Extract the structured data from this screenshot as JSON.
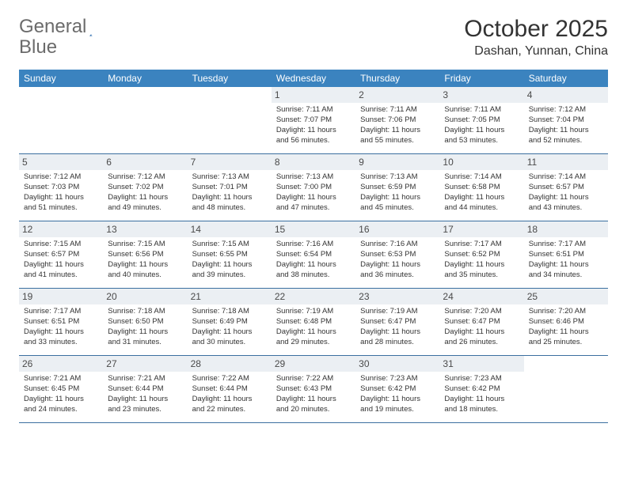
{
  "logo": {
    "text1": "General",
    "text2": "Blue"
  },
  "title": "October 2025",
  "location": "Dashan, Yunnan, China",
  "colors": {
    "header_bg": "#3b83bf",
    "header_text": "#ffffff",
    "daynum_bg": "#ebeff3",
    "rule": "#3b6fa0",
    "logo_accent": "#2f6fb0"
  },
  "weekdays": [
    "Sunday",
    "Monday",
    "Tuesday",
    "Wednesday",
    "Thursday",
    "Friday",
    "Saturday"
  ],
  "weeks": [
    [
      {
        "n": "",
        "sr": "",
        "ss": "",
        "dl": ""
      },
      {
        "n": "",
        "sr": "",
        "ss": "",
        "dl": ""
      },
      {
        "n": "",
        "sr": "",
        "ss": "",
        "dl": ""
      },
      {
        "n": "1",
        "sr": "7:11 AM",
        "ss": "7:07 PM",
        "dl": "11 hours and 56 minutes."
      },
      {
        "n": "2",
        "sr": "7:11 AM",
        "ss": "7:06 PM",
        "dl": "11 hours and 55 minutes."
      },
      {
        "n": "3",
        "sr": "7:11 AM",
        "ss": "7:05 PM",
        "dl": "11 hours and 53 minutes."
      },
      {
        "n": "4",
        "sr": "7:12 AM",
        "ss": "7:04 PM",
        "dl": "11 hours and 52 minutes."
      }
    ],
    [
      {
        "n": "5",
        "sr": "7:12 AM",
        "ss": "7:03 PM",
        "dl": "11 hours and 51 minutes."
      },
      {
        "n": "6",
        "sr": "7:12 AM",
        "ss": "7:02 PM",
        "dl": "11 hours and 49 minutes."
      },
      {
        "n": "7",
        "sr": "7:13 AM",
        "ss": "7:01 PM",
        "dl": "11 hours and 48 minutes."
      },
      {
        "n": "8",
        "sr": "7:13 AM",
        "ss": "7:00 PM",
        "dl": "11 hours and 47 minutes."
      },
      {
        "n": "9",
        "sr": "7:13 AM",
        "ss": "6:59 PM",
        "dl": "11 hours and 45 minutes."
      },
      {
        "n": "10",
        "sr": "7:14 AM",
        "ss": "6:58 PM",
        "dl": "11 hours and 44 minutes."
      },
      {
        "n": "11",
        "sr": "7:14 AM",
        "ss": "6:57 PM",
        "dl": "11 hours and 43 minutes."
      }
    ],
    [
      {
        "n": "12",
        "sr": "7:15 AM",
        "ss": "6:57 PM",
        "dl": "11 hours and 41 minutes."
      },
      {
        "n": "13",
        "sr": "7:15 AM",
        "ss": "6:56 PM",
        "dl": "11 hours and 40 minutes."
      },
      {
        "n": "14",
        "sr": "7:15 AM",
        "ss": "6:55 PM",
        "dl": "11 hours and 39 minutes."
      },
      {
        "n": "15",
        "sr": "7:16 AM",
        "ss": "6:54 PM",
        "dl": "11 hours and 38 minutes."
      },
      {
        "n": "16",
        "sr": "7:16 AM",
        "ss": "6:53 PM",
        "dl": "11 hours and 36 minutes."
      },
      {
        "n": "17",
        "sr": "7:17 AM",
        "ss": "6:52 PM",
        "dl": "11 hours and 35 minutes."
      },
      {
        "n": "18",
        "sr": "7:17 AM",
        "ss": "6:51 PM",
        "dl": "11 hours and 34 minutes."
      }
    ],
    [
      {
        "n": "19",
        "sr": "7:17 AM",
        "ss": "6:51 PM",
        "dl": "11 hours and 33 minutes."
      },
      {
        "n": "20",
        "sr": "7:18 AM",
        "ss": "6:50 PM",
        "dl": "11 hours and 31 minutes."
      },
      {
        "n": "21",
        "sr": "7:18 AM",
        "ss": "6:49 PM",
        "dl": "11 hours and 30 minutes."
      },
      {
        "n": "22",
        "sr": "7:19 AM",
        "ss": "6:48 PM",
        "dl": "11 hours and 29 minutes."
      },
      {
        "n": "23",
        "sr": "7:19 AM",
        "ss": "6:47 PM",
        "dl": "11 hours and 28 minutes."
      },
      {
        "n": "24",
        "sr": "7:20 AM",
        "ss": "6:47 PM",
        "dl": "11 hours and 26 minutes."
      },
      {
        "n": "25",
        "sr": "7:20 AM",
        "ss": "6:46 PM",
        "dl": "11 hours and 25 minutes."
      }
    ],
    [
      {
        "n": "26",
        "sr": "7:21 AM",
        "ss": "6:45 PM",
        "dl": "11 hours and 24 minutes."
      },
      {
        "n": "27",
        "sr": "7:21 AM",
        "ss": "6:44 PM",
        "dl": "11 hours and 23 minutes."
      },
      {
        "n": "28",
        "sr": "7:22 AM",
        "ss": "6:44 PM",
        "dl": "11 hours and 22 minutes."
      },
      {
        "n": "29",
        "sr": "7:22 AM",
        "ss": "6:43 PM",
        "dl": "11 hours and 20 minutes."
      },
      {
        "n": "30",
        "sr": "7:23 AM",
        "ss": "6:42 PM",
        "dl": "11 hours and 19 minutes."
      },
      {
        "n": "31",
        "sr": "7:23 AM",
        "ss": "6:42 PM",
        "dl": "11 hours and 18 minutes."
      },
      {
        "n": "",
        "sr": "",
        "ss": "",
        "dl": ""
      }
    ]
  ],
  "labels": {
    "sunrise": "Sunrise:",
    "sunset": "Sunset:",
    "daylight": "Daylight:"
  }
}
